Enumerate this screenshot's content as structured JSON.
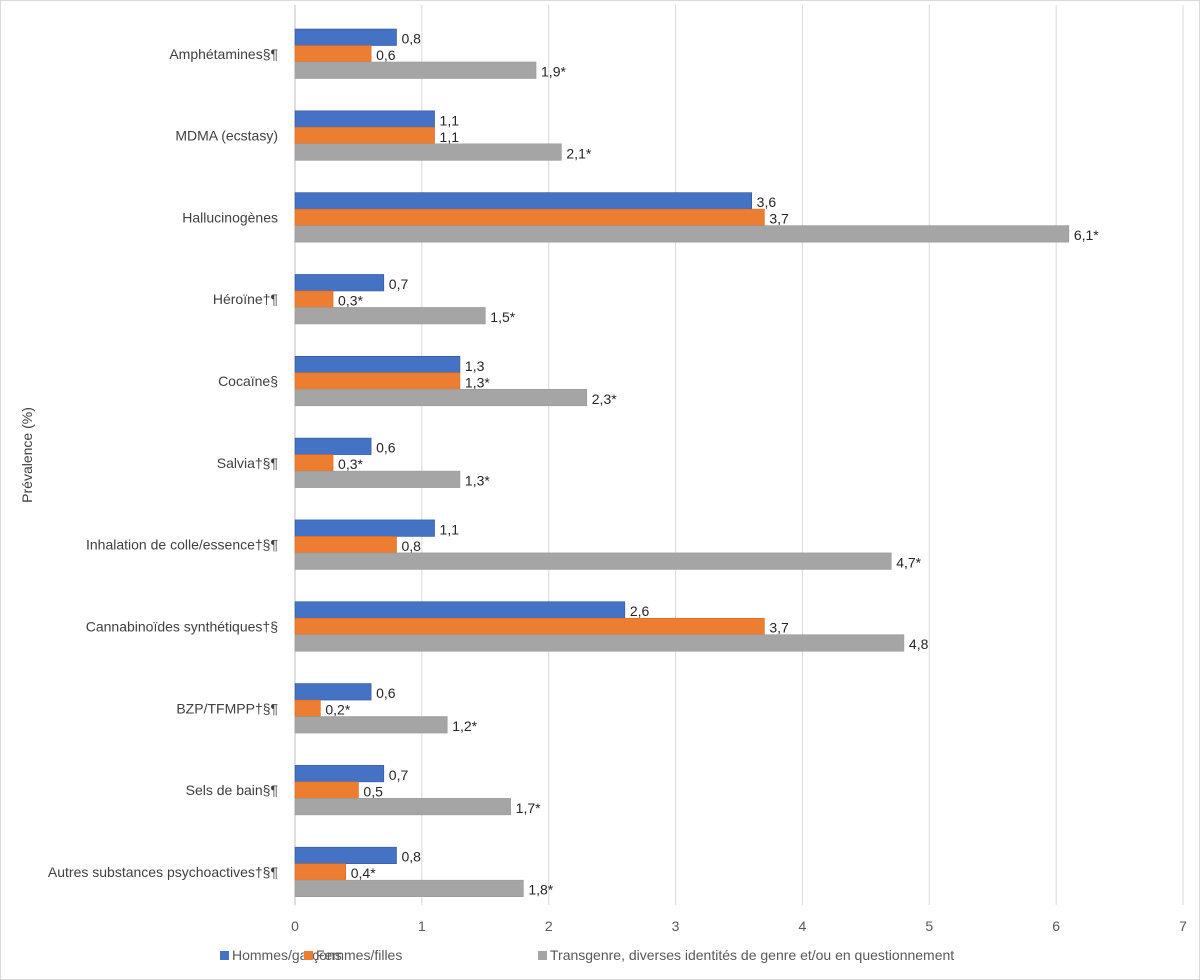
{
  "chart_data": {
    "type": "bar",
    "orientation": "horizontal",
    "ylabel": "Prévalence (%)",
    "xlim": [
      0,
      7
    ],
    "xticks": [
      "0",
      "1",
      "2",
      "3",
      "4",
      "5",
      "6",
      "7"
    ],
    "grid": true,
    "legend_position": "bottom",
    "categories": [
      "Amphétamines§¶",
      "MDMA (ecstasy)",
      "Hallucinogènes",
      "Héroïne†¶",
      "Cocaïne§",
      "Salvia†§¶",
      "Inhalation de colle/essence†§¶",
      "Cannabinoïdes synthétiques†§",
      "BZP/TFMPP†§¶",
      "Sels de bain§¶",
      "Autres substances psychoactives†§¶"
    ],
    "series": [
      {
        "name": "Hommes/garçons",
        "color": "#4472c4",
        "values": [
          0.8,
          1.1,
          3.6,
          0.7,
          1.3,
          0.6,
          1.1,
          2.6,
          0.6,
          0.7,
          0.8
        ],
        "labels": [
          "0,8",
          "1,1",
          "3,6",
          "0,7",
          "1,3",
          "0,6",
          "1,1",
          "2,6",
          "0,6",
          "0,7",
          "0,8"
        ]
      },
      {
        "name": "Femmes/filles",
        "color": "#ed7d31",
        "values": [
          0.6,
          1.1,
          3.7,
          0.3,
          1.3,
          0.3,
          0.8,
          3.7,
          0.2,
          0.5,
          0.4
        ],
        "labels": [
          "0,6",
          "1,1",
          "3,7",
          "0,3*",
          "1,3*",
          "0,3*",
          "0,8",
          "3,7",
          "0,2*",
          "0,5",
          "0,4*"
        ]
      },
      {
        "name": "Transgenre, diverses identités de genre et/ou en questionnement",
        "color": "#a5a5a5",
        "values": [
          1.9,
          2.1,
          6.1,
          1.5,
          2.3,
          1.3,
          4.7,
          4.8,
          1.2,
          1.7,
          1.8
        ],
        "labels": [
          "1,9*",
          "2,1*",
          "6,1*",
          "1,5*",
          "2,3*",
          "1,3*",
          "4,7*",
          "4,8",
          "1,2*",
          "1,7*",
          "1,8*"
        ]
      }
    ]
  }
}
